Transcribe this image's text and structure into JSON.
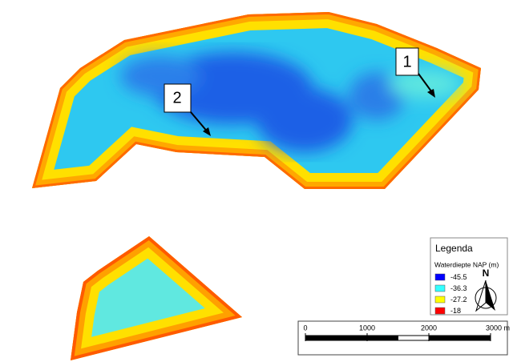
{
  "callouts": [
    "1",
    "2"
  ],
  "legend": {
    "title": "Legenda",
    "subtitle": "Waterdiepte NAP (m)",
    "items": [
      {
        "value": -45.5,
        "color": "#0000ff"
      },
      {
        "value": -36.3,
        "color": "#33ffff"
      },
      {
        "value": -27.2,
        "color": "#ffff00"
      },
      {
        "value": -18,
        "color": "#ff0000"
      }
    ]
  },
  "north": "N",
  "scale": {
    "ticks": [
      0,
      1000,
      2000,
      {
        "value": 3000,
        "label": "3000 m"
      }
    ]
  }
}
